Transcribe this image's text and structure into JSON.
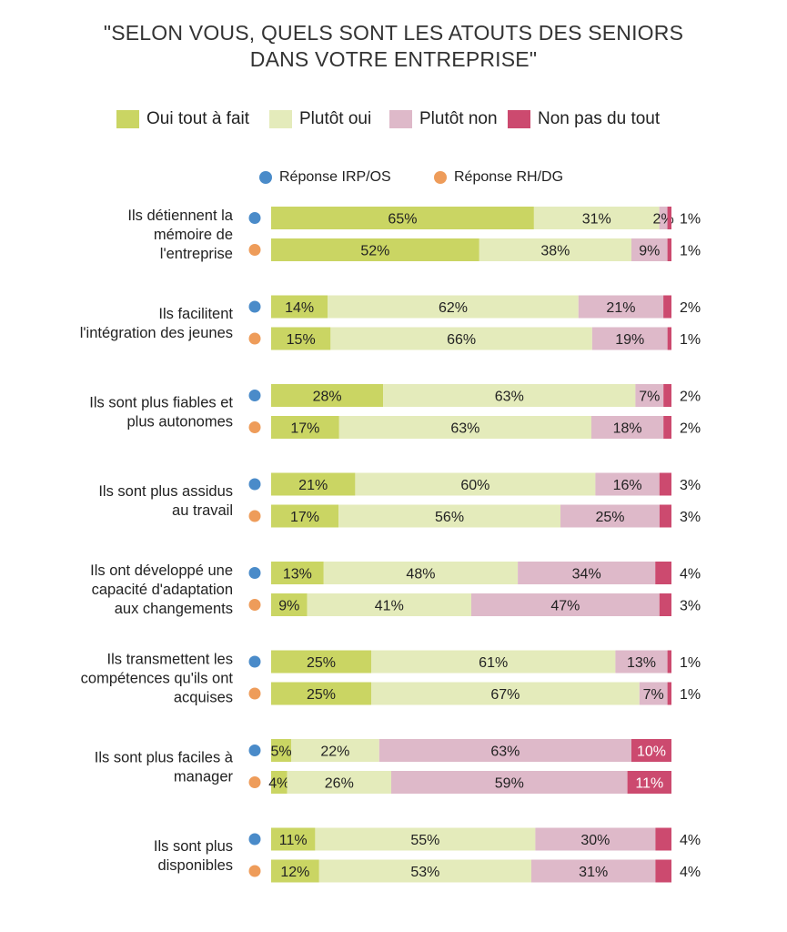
{
  "title": {
    "line1": "\"SELON VOUS, QUELS SONT LES ATOUTS DES SENIORS",
    "line2": "DANS VOTRE ENTREPRISE\""
  },
  "legend": {
    "items": [
      {
        "label": "Oui tout à fait",
        "color": "#cad563"
      },
      {
        "label": "Plutôt oui",
        "color": "#e4ebbb"
      },
      {
        "label": "Plutôt non",
        "color": "#deb9c9"
      },
      {
        "label": "Non pas du tout",
        "color": "#cc4a6f"
      }
    ]
  },
  "respondents": [
    {
      "label": "Réponse IRP/OS",
      "color": "#4a8bc9"
    },
    {
      "label": "Réponse RH/DG",
      "color": "#ee9c5a"
    }
  ],
  "chart_data": {
    "type": "bar",
    "orientation": "horizontal",
    "stacked": "100%",
    "title": "\"SELON VOUS, QUELS SONT LES ATOUTS DES SENIORS DANS VOTRE ENTREPRISE\"",
    "legend_position": "top",
    "value_format": "{v}%",
    "xlim": [
      0,
      100
    ],
    "categories": [
      [
        "Ils détiennent la",
        "mémoire de",
        "l'entreprise"
      ],
      [
        "Ils facilitent",
        "l'intégration des jeunes"
      ],
      [
        "Ils sont plus fiables et",
        "plus autonomes"
      ],
      [
        "Ils sont plus assidus",
        "au travail"
      ],
      [
        "Ils ont développé une",
        "capacité d'adaptation",
        "aux changements"
      ],
      [
        "Ils transmettent les",
        "compétences qu'ils ont",
        "acquises"
      ],
      [
        "Ils sont plus faciles à",
        "manager"
      ],
      [
        "Ils sont plus",
        "disponibles"
      ]
    ],
    "groups": [
      "Réponse IRP/OS",
      "Réponse RH/DG"
    ],
    "series": [
      {
        "name": "Oui tout à fait",
        "color": "#cad563",
        "values": [
          [
            65,
            52
          ],
          [
            14,
            15
          ],
          [
            28,
            17
          ],
          [
            21,
            17
          ],
          [
            13,
            9
          ],
          [
            25,
            25
          ],
          [
            5,
            4
          ],
          [
            11,
            12
          ]
        ]
      },
      {
        "name": "Plutôt oui",
        "color": "#e4ebbb",
        "values": [
          [
            31,
            38
          ],
          [
            62,
            66
          ],
          [
            63,
            63
          ],
          [
            60,
            56
          ],
          [
            48,
            41
          ],
          [
            61,
            67
          ],
          [
            22,
            26
          ],
          [
            55,
            53
          ]
        ]
      },
      {
        "name": "Plutôt non",
        "color": "#deb9c9",
        "values": [
          [
            2,
            9
          ],
          [
            21,
            19
          ],
          [
            7,
            18
          ],
          [
            16,
            25
          ],
          [
            34,
            47
          ],
          [
            13,
            7
          ],
          [
            63,
            59
          ],
          [
            30,
            31
          ]
        ]
      },
      {
        "name": "Non pas du tout",
        "color": "#cc4a6f",
        "values": [
          [
            1,
            1
          ],
          [
            2,
            1
          ],
          [
            2,
            2
          ],
          [
            3,
            3
          ],
          [
            4,
            3
          ],
          [
            1,
            1
          ],
          [
            10,
            11
          ],
          [
            4,
            4
          ]
        ]
      }
    ]
  }
}
